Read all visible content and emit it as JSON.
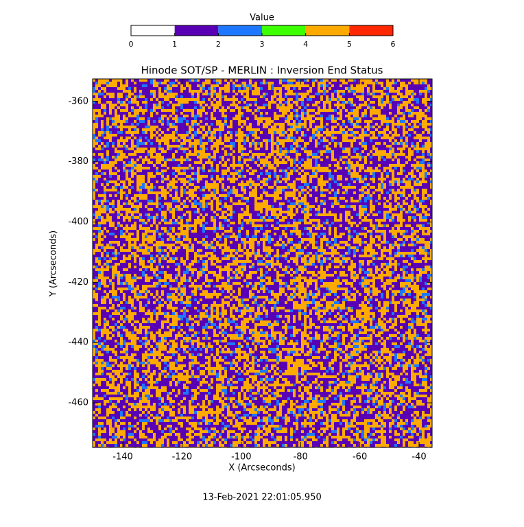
{
  "chart_data": {
    "type": "image",
    "title": "Hinode SOT/SP - MERLIN : Inversion End Status",
    "xlabel": "X (Arcseconds)",
    "ylabel": "Y (Arcseconds)",
    "xlim": [
      -150.2,
      -35.6
    ],
    "xticks": [
      -140,
      -120,
      -100,
      -80,
      -60,
      -40
    ],
    "ylim": [
      -474.8,
      -352.5
    ],
    "yticks": [
      -360,
      -380,
      -400,
      -420,
      -440,
      -460
    ],
    "colorbar": {
      "title": "Value",
      "lim": [
        0,
        6
      ],
      "ticks": [
        0,
        1,
        2,
        3,
        4,
        5,
        6
      ],
      "colors": [
        "#ffffff",
        "#5a00b4",
        "#1e78ff",
        "#3cff00",
        "#ffaa00",
        "#ff2800"
      ]
    },
    "footer": "13-Feb-2021 22:01:05.950"
  }
}
